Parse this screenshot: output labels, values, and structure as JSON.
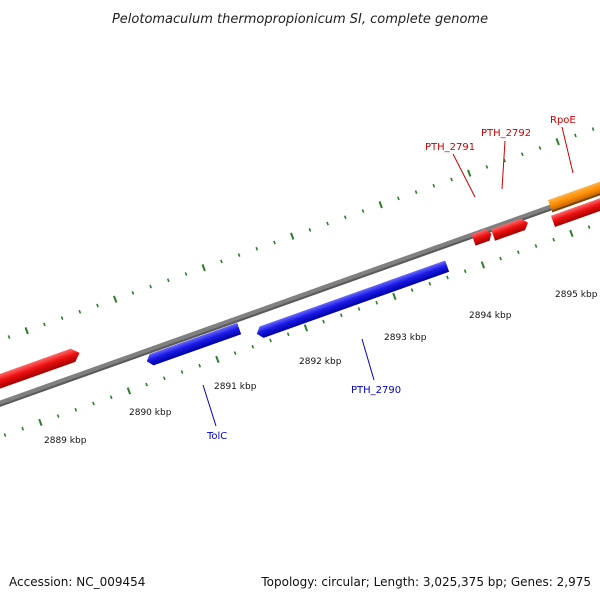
{
  "title": "Pelotomaculum thermopropionicum SI, complete genome",
  "footer": {
    "accession": "Accession: NC_009454",
    "summary": "Topology: circular; Length: 3,025,375 bp; Genes: 2,975"
  },
  "colors": {
    "backbone": "#808080",
    "tick": "#2e7d2e",
    "forward_gene": "#ee1111",
    "reverse_gene": "#1a1ae6",
    "rna_gene": "#ff8c00",
    "forward_label": "#cc0000",
    "reverse_label": "#0000cc"
  },
  "kbp_labels": [
    "2889 kbp",
    "2890 kbp",
    "2891 kbp",
    "2892 kbp",
    "2893 kbp",
    "2894 kbp",
    "2895 kbp"
  ],
  "gene_labels": {
    "pth2791": "PTH_2791",
    "pth2792": "PTH_2792",
    "rpoe": "RpoE",
    "tolc": "TolC",
    "pth2790": "PTH_2790"
  }
}
